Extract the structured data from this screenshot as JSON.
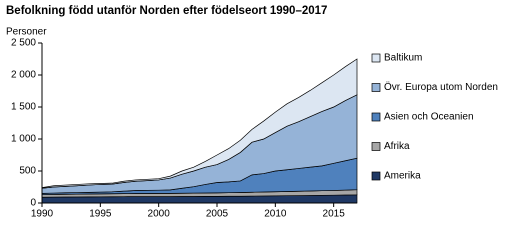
{
  "chart_data": {
    "type": "stacked-area",
    "title": "Befolkning född utanför Norden efter födelseort 1990–2017",
    "y_label": "Personer",
    "x": [
      1990,
      1991,
      1992,
      1993,
      1994,
      1995,
      1996,
      1997,
      1998,
      1999,
      2000,
      2001,
      2002,
      2003,
      2004,
      2005,
      2006,
      2007,
      2008,
      2009,
      2010,
      2011,
      2012,
      2013,
      2014,
      2015,
      2016,
      2017
    ],
    "xlim": [
      1990,
      2017
    ],
    "xticks": [
      1990,
      1995,
      2000,
      2005,
      2010,
      2015
    ],
    "ylim": [
      0,
      2500
    ],
    "yticks": [
      0,
      500,
      {
        "value": 1000,
        "label": "1 000"
      },
      {
        "value": 1500,
        "label": "1 500"
      },
      {
        "value": 2000,
        "label": "2 000"
      },
      {
        "value": 2500,
        "label": "2 500"
      }
    ],
    "series": [
      {
        "name": "Amerika",
        "color": "#1f3864",
        "values": [
          90,
          92,
          94,
          95,
          96,
          97,
          98,
          99,
          100,
          100,
          100,
          100,
          101,
          102,
          103,
          104,
          105,
          106,
          108,
          110,
          112,
          114,
          116,
          118,
          120,
          122,
          125,
          128
        ]
      },
      {
        "name": "Afrika",
        "color": "#a6a6a6",
        "values": [
          40,
          42,
          43,
          44,
          45,
          46,
          47,
          48,
          48,
          49,
          50,
          50,
          51,
          52,
          53,
          54,
          56,
          58,
          60,
          62,
          64,
          66,
          68,
          70,
          72,
          74,
          76,
          80
        ]
      },
      {
        "name": "Asien och Oceanien",
        "color": "#4f81bd",
        "values": [
          20,
          21,
          23,
          24,
          25,
          27,
          30,
          38,
          47,
          49,
          50,
          55,
          78,
          101,
          134,
          162,
          169,
          181,
          272,
          288,
          324,
          340,
          356,
          372,
          388,
          424,
          459,
          492
        ]
      },
      {
        "name": "Övr. Europa utom Norden",
        "color": "#95b3d7",
        "values": [
          80,
          95,
          100,
          107,
          114,
          120,
          120,
          135,
          145,
          152,
          160,
          185,
          220,
          245,
          270,
          280,
          350,
          445,
          510,
          540,
          600,
          680,
          730,
          790,
          850,
          880,
          940,
          990
        ]
      },
      {
        "name": "Baltikum",
        "color": "#dce6f2",
        "values": [
          10,
          20,
          20,
          20,
          20,
          15,
          15,
          20,
          20,
          20,
          20,
          30,
          50,
          60,
          90,
          150,
          170,
          190,
          200,
          280,
          320,
          350,
          380,
          410,
          450,
          500,
          530,
          560
        ]
      }
    ]
  }
}
